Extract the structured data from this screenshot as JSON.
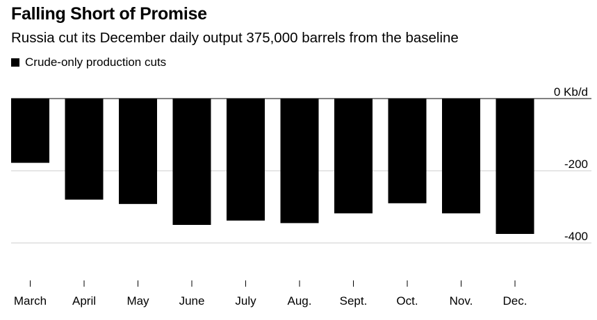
{
  "chart_data": {
    "type": "bar",
    "title": "Falling Short of Promise",
    "subtitle": "Russia cut its December daily output 375,000 barrels from the baseline",
    "legend": [
      "Crude-only production cuts"
    ],
    "categories": [
      "March",
      "April",
      "May",
      "June",
      "July",
      "Aug.",
      "Sept.",
      "Oct.",
      "Nov.",
      "Dec."
    ],
    "series": [
      {
        "name": "Crude-only production cuts",
        "values": [
          -178,
          -280,
          -292,
          -350,
          -338,
          -345,
          -318,
          -290,
          -318,
          -375
        ]
      }
    ],
    "y_ticks": [
      {
        "value": 0,
        "label": "0 Kb/d"
      },
      {
        "value": -200,
        "label": "-200"
      },
      {
        "value": -400,
        "label": "-400"
      }
    ],
    "ylim": [
      -430,
      0
    ],
    "xlabel": "",
    "ylabel": "Kb/d",
    "colors": {
      "bar": "#000000",
      "gridline": "#cccccc",
      "baseline": "#000000"
    }
  }
}
